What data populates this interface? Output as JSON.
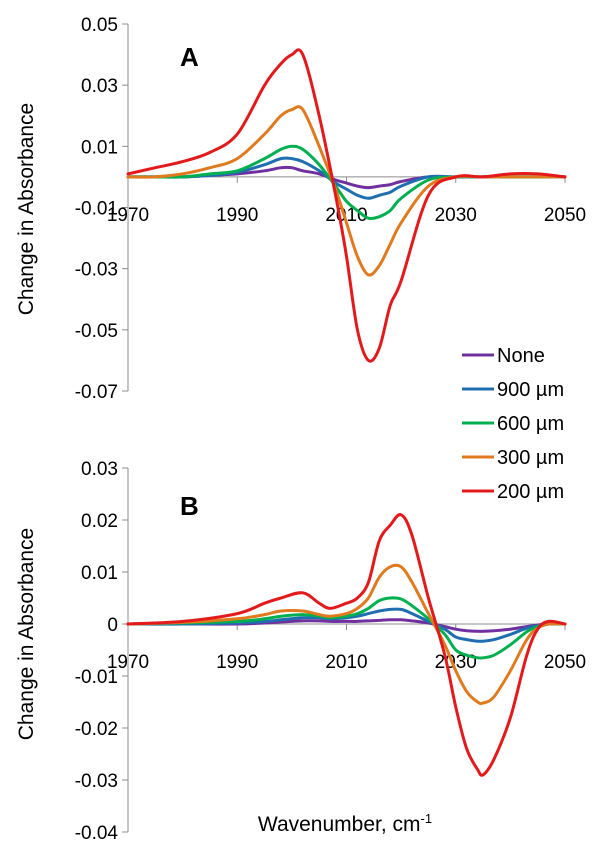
{
  "chart_data": [
    {
      "type": "line",
      "panel_label": "A",
      "ylabel": "Change in Absorbance",
      "xlabel": "",
      "xlim": [
        1970,
        2050
      ],
      "ylim": [
        -0.07,
        0.05
      ],
      "x_ticks": [
        "1970",
        "1990",
        "2010",
        "2030",
        "2050"
      ],
      "y_ticks": [
        "0.05",
        "0.03",
        "0.01",
        "-0.01",
        "-0.03",
        "-0.05",
        "-0.07"
      ],
      "grid": false,
      "x": [
        1970,
        1975,
        1980,
        1985,
        1990,
        1995,
        1998,
        2000,
        2002,
        2005,
        2008,
        2010,
        2012,
        2014,
        2016,
        2018,
        2020,
        2025,
        2030,
        2035,
        2040,
        2045,
        2050
      ],
      "series": [
        {
          "name": "None",
          "color": "#7030a0",
          "values": [
            0,
            0,
            0,
            0.0005,
            0.001,
            0.002,
            0.003,
            0.003,
            0.002,
            0.001,
            -0.001,
            -0.002,
            -0.003,
            -0.0035,
            -0.003,
            -0.0025,
            -0.0015,
            0,
            0,
            0,
            0,
            0,
            0
          ]
        },
        {
          "name": "900 µm",
          "color": "#1f6fb0",
          "values": [
            0,
            0,
            0,
            0.0005,
            0.0015,
            0.004,
            0.006,
            0.006,
            0.005,
            0.002,
            -0.002,
            -0.004,
            -0.006,
            -0.007,
            -0.006,
            -0.005,
            -0.003,
            0,
            0,
            0,
            0,
            0,
            0
          ]
        },
        {
          "name": "600 µm",
          "color": "#00b050",
          "values": [
            0,
            0,
            0,
            0.001,
            0.002,
            0.006,
            0.009,
            0.01,
            0.009,
            0.004,
            -0.003,
            -0.008,
            -0.011,
            -0.0135,
            -0.013,
            -0.011,
            -0.007,
            -0.001,
            0,
            0,
            0,
            0,
            0
          ]
        },
        {
          "name": "300 µm",
          "color": "#e07a1f",
          "values": [
            0,
            0,
            0.001,
            0.003,
            0.006,
            0.014,
            0.02,
            0.022,
            0.022,
            0.01,
            -0.004,
            -0.015,
            -0.026,
            -0.032,
            -0.029,
            -0.022,
            -0.015,
            -0.003,
            0,
            0,
            0,
            0,
            0
          ]
        },
        {
          "name": "200 µm",
          "color": "#e31a1c",
          "values": [
            0.001,
            0.003,
            0.005,
            0.008,
            0.014,
            0.03,
            0.037,
            0.04,
            0.04,
            0.02,
            -0.006,
            -0.026,
            -0.05,
            -0.06,
            -0.056,
            -0.042,
            -0.034,
            -0.006,
            0,
            0,
            0.001,
            0.001,
            0
          ]
        }
      ]
    },
    {
      "type": "line",
      "panel_label": "B",
      "ylabel": "Change in Absorbance",
      "xlabel": "Wavenumber, cm",
      "xlabel_superscript": "-1",
      "xlim": [
        1970,
        2050
      ],
      "ylim": [
        -0.04,
        0.03
      ],
      "x_ticks": [
        "1970",
        "1990",
        "2010",
        "2030",
        "2050"
      ],
      "y_ticks": [
        "0.03",
        "0.02",
        "0.01",
        "0",
        "-0.01",
        "-0.02",
        "-0.03",
        "-0.04"
      ],
      "grid": false,
      "legend": {
        "position": "right",
        "entries": [
          "None",
          "900 µm",
          "600 µm",
          "300 µm",
          "200 µm"
        ]
      },
      "x": [
        1970,
        1980,
        1990,
        1995,
        1998,
        2002,
        2005,
        2007,
        2010,
        2012,
        2014,
        2016,
        2018,
        2020,
        2022,
        2025,
        2028,
        2030,
        2032,
        2034,
        2035,
        2037,
        2040,
        2043,
        2045,
        2047,
        2050
      ],
      "series": [
        {
          "name": "None",
          "color": "#7030a0",
          "values": [
            0,
            0,
            0,
            0.0002,
            0.0004,
            0.0006,
            0.0006,
            0.0005,
            0.0005,
            0.0005,
            0.0006,
            0.0007,
            0.0008,
            0.0008,
            0.0006,
            0.0002,
            -0.0005,
            -0.001,
            -0.0013,
            -0.0014,
            -0.0014,
            -0.0013,
            -0.001,
            -0.0005,
            -0.0002,
            0,
            0
          ]
        },
        {
          "name": "900 µm",
          "color": "#1f6fb0",
          "values": [
            0,
            0,
            0.0002,
            0.0005,
            0.0008,
            0.0012,
            0.0012,
            0.001,
            0.0012,
            0.0015,
            0.002,
            0.0025,
            0.0028,
            0.0028,
            0.002,
            0.0005,
            -0.001,
            -0.0025,
            -0.003,
            -0.0033,
            -0.0033,
            -0.003,
            -0.002,
            -0.0008,
            -0.0003,
            0,
            0
          ]
        },
        {
          "name": "600 µm",
          "color": "#00b050",
          "values": [
            0,
            0.0002,
            0.0005,
            0.001,
            0.0015,
            0.0018,
            0.0015,
            0.0012,
            0.0015,
            0.002,
            0.003,
            0.0045,
            0.005,
            0.0048,
            0.0035,
            0.001,
            -0.002,
            -0.005,
            -0.006,
            -0.0065,
            -0.0065,
            -0.006,
            -0.004,
            -0.0015,
            -0.0005,
            0,
            0
          ]
        },
        {
          "name": "300 µm",
          "color": "#e07a1f",
          "values": [
            0,
            0.0003,
            0.001,
            0.0018,
            0.0025,
            0.0025,
            0.0018,
            0.0015,
            0.002,
            0.003,
            0.005,
            0.009,
            0.011,
            0.011,
            0.008,
            0.002,
            -0.004,
            -0.009,
            -0.013,
            -0.015,
            -0.0152,
            -0.014,
            -0.009,
            -0.003,
            -0.0008,
            0,
            0
          ]
        },
        {
          "name": "200 µm",
          "color": "#e31a1c",
          "values": [
            0,
            0.0005,
            0.002,
            0.004,
            0.005,
            0.006,
            0.004,
            0.003,
            0.004,
            0.005,
            0.008,
            0.016,
            0.019,
            0.021,
            0.017,
            0.005,
            -0.006,
            -0.016,
            -0.024,
            -0.028,
            -0.029,
            -0.026,
            -0.018,
            -0.006,
            -0.001,
            0.0005,
            0
          ]
        }
      ]
    }
  ]
}
